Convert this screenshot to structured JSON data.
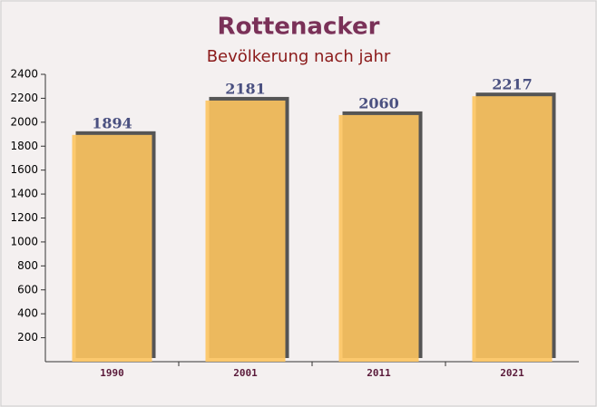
{
  "chart_data": {
    "type": "bar",
    "title": "Rottenacker",
    "subtitle": "Bevölkerung nach jahr",
    "categories": [
      "1990",
      "2001",
      "2011",
      "2021"
    ],
    "values": [
      1894,
      2181,
      2060,
      2217
    ],
    "color": "#fdc45f",
    "ylim": [
      0,
      2400
    ],
    "yticks": [
      200,
      400,
      600,
      800,
      1000,
      1200,
      1400,
      1600,
      1800,
      2000,
      2200,
      2400
    ]
  }
}
